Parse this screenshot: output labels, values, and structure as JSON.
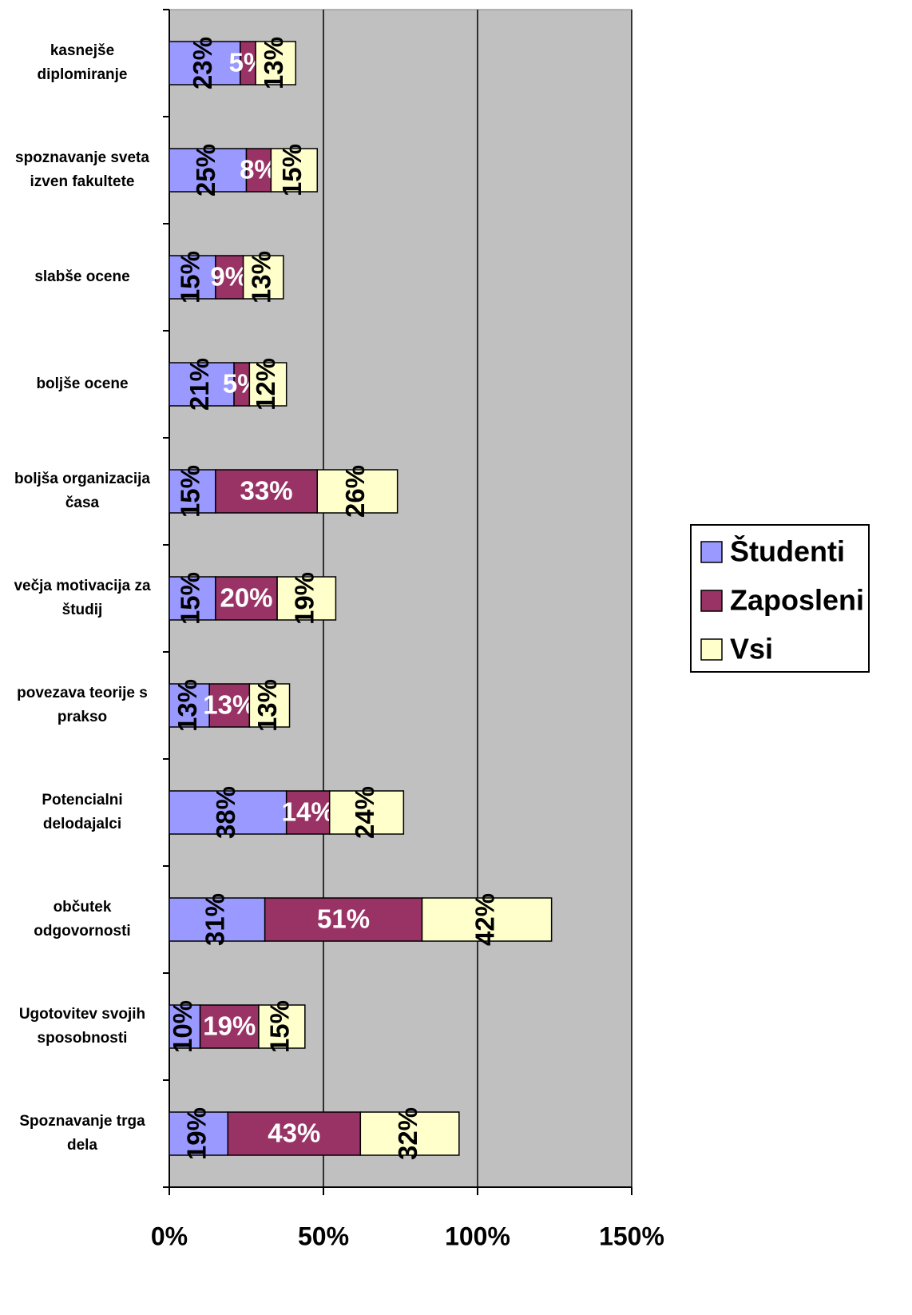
{
  "chart_data": {
    "type": "bar",
    "orientation": "horizontal",
    "stacked": true,
    "categories": [
      "kasnejše diplomiranje",
      "spoznavanje sveta izven fakultete",
      "slabše ocene",
      "boljše ocene",
      "boljša organizacija časa",
      "večja motivacija za študij",
      "povezava teorije s prakso",
      "Potencialni delodajalci",
      "občutek odgovornosti",
      "Ugotovitev svojih sposobnosti",
      "Spoznavanje trga dela"
    ],
    "series": [
      {
        "name": "Študenti",
        "color": "#9999ff",
        "values": [
          23,
          25,
          15,
          21,
          15,
          15,
          13,
          38,
          31,
          10,
          19
        ],
        "value_labels": [
          "23%",
          "25%",
          "15%",
          "21%",
          "15%",
          "15%",
          "13%",
          "38%",
          "31%",
          "10%",
          "19%"
        ]
      },
      {
        "name": "Zaposleni",
        "color": "#993366",
        "values": [
          5,
          8,
          9,
          5,
          33,
          20,
          13,
          14,
          51,
          19,
          43
        ],
        "value_labels": [
          "5%",
          "8%",
          "9%",
          "5%",
          "33%",
          "20%",
          "13%",
          "14%",
          "51%",
          "19%",
          "43%"
        ]
      },
      {
        "name": "Vsi",
        "color": "#ffffcc",
        "values": [
          13,
          15,
          13,
          12,
          26,
          19,
          13,
          24,
          42,
          15,
          32
        ],
        "value_labels": [
          "13%",
          "15%",
          "13%",
          "12%",
          "26%",
          "19%",
          "13%",
          "24%",
          "42%",
          "15%",
          "32%"
        ]
      }
    ],
    "xlim": [
      0,
      150
    ],
    "xticks": [
      {
        "value": 0,
        "label": "0%"
      },
      {
        "value": 50,
        "label": "50%"
      },
      {
        "value": 100,
        "label": "100%"
      },
      {
        "value": 150,
        "label": "150%"
      }
    ],
    "grid": true,
    "legend": "right",
    "plot_background": "#c0c0c0"
  }
}
